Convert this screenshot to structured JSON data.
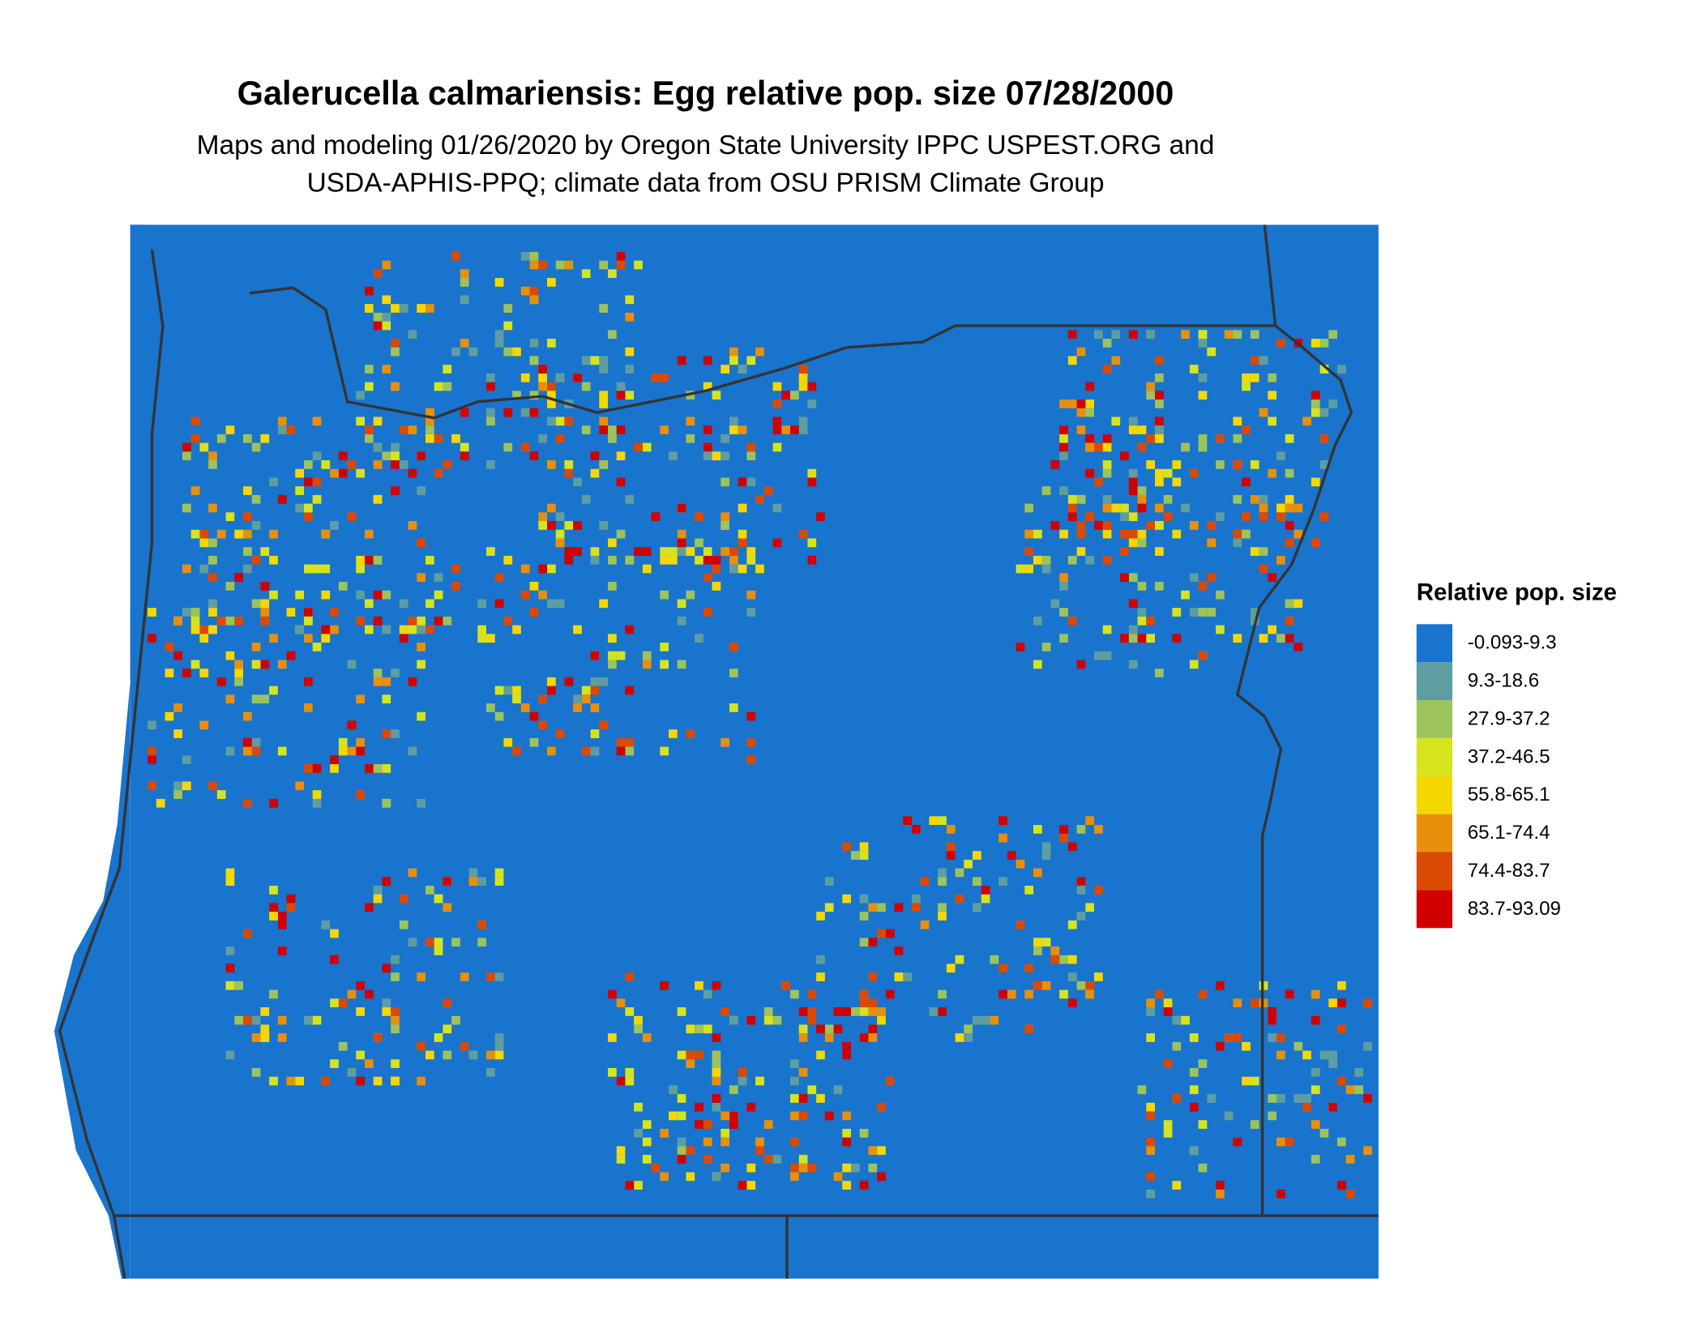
{
  "title": "Galerucella calmariensis: Egg relative pop. size 07/28/2000",
  "subtitle": [
    "Maps and modeling 01/26/2020 by Oregon State University IPPC USPEST.ORG and",
    "USDA-APHIS-PPQ; climate data from OSU PRISM Climate Group"
  ],
  "legend": {
    "title": "Relative pop. size",
    "items": [
      {
        "label": "-0.093-9.3",
        "color": "#1874cd"
      },
      {
        "label": "9.3-18.6",
        "color": "#5f9ea0"
      },
      {
        "label": "27.9-37.2",
        "color": "#9dc35b"
      },
      {
        "label": "37.2-46.5",
        "color": "#d6e41e"
      },
      {
        "label": "55.8-65.1",
        "color": "#f5d800"
      },
      {
        "label": "65.1-74.4",
        "color": "#e8900b"
      },
      {
        "label": "74.4-83.7",
        "color": "#db4a05"
      },
      {
        "label": "83.7-93.09",
        "color": "#d10000"
      }
    ]
  }
}
